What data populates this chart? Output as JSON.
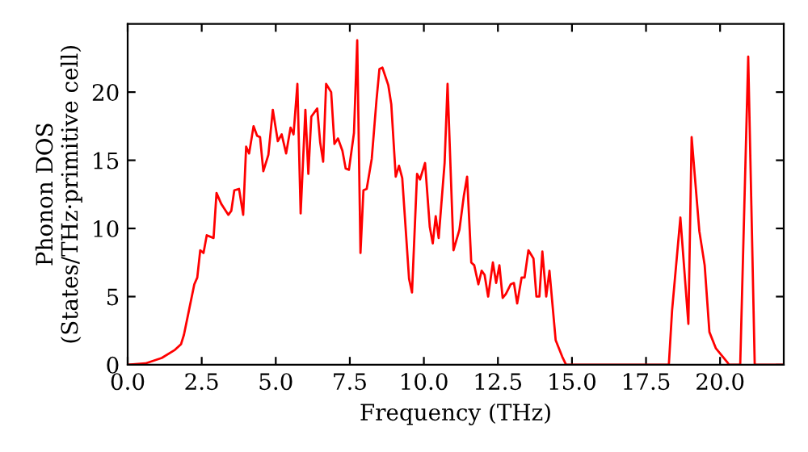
{
  "chart_data": {
    "type": "line",
    "xlabel": "Frequency (THz)",
    "ylabel": "Phonon DOS\n(States/THz·primitive cell)",
    "xlim": [
      0,
      22.15
    ],
    "ylim": [
      0,
      25
    ],
    "xticks": [
      {
        "value": 0,
        "label": "0.0"
      },
      {
        "value": 2.5,
        "label": "2.5"
      },
      {
        "value": 5,
        "label": "5.0"
      },
      {
        "value": 7.5,
        "label": "7.5"
      },
      {
        "value": 10,
        "label": "10.0"
      },
      {
        "value": 12.5,
        "label": "12.5"
      },
      {
        "value": 15,
        "label": "15.0"
      },
      {
        "value": 17.5,
        "label": "17.5"
      },
      {
        "value": 20,
        "label": "20.0"
      }
    ],
    "yticks": [
      0,
      5,
      10,
      15,
      20
    ],
    "grid": false,
    "marker": "none",
    "line_style": "solid",
    "series": [
      {
        "color": "#ff0000",
        "x": [
          0,
          0.6,
          1.15,
          1.6,
          1.8,
          1.9,
          2.07,
          2.25,
          2.35,
          2.45,
          2.56,
          2.67,
          2.9,
          3.0,
          3.16,
          3.4,
          3.5,
          3.6,
          3.76,
          3.9,
          4.0,
          4.1,
          4.25,
          4.37,
          4.47,
          4.58,
          4.75,
          4.9,
          5.07,
          5.2,
          5.35,
          5.5,
          5.6,
          5.73,
          5.84,
          6.0,
          6.1,
          6.2,
          6.4,
          6.5,
          6.6,
          6.7,
          6.87,
          6.98,
          7.1,
          7.25,
          7.36,
          7.47,
          7.64,
          7.75,
          7.86,
          7.96,
          8.07,
          8.24,
          8.4,
          8.5,
          8.6,
          8.8,
          8.9,
          9.05,
          9.16,
          9.27,
          9.5,
          9.6,
          9.77,
          9.87,
          10.04,
          10.2,
          10.3,
          10.4,
          10.5,
          10.7,
          10.8,
          11.0,
          11.2,
          11.35,
          11.46,
          11.6,
          11.7,
          11.84,
          11.95,
          12.05,
          12.17,
          12.33,
          12.44,
          12.55,
          12.66,
          12.77,
          12.93,
          13.04,
          13.15,
          13.3,
          13.4,
          13.53,
          13.7,
          13.8,
          13.9,
          14.0,
          14.13,
          14.24,
          14.45,
          14.67,
          14.8,
          18.27,
          18.38,
          18.66,
          18.93,
          19.04,
          19.3,
          19.48,
          19.64,
          19.86,
          20.24,
          20.3,
          20.68,
          20.95,
          21.17,
          22.15
        ],
        "values": [
          0,
          0.1,
          0.5,
          1.1,
          1.5,
          2.2,
          4,
          5.9,
          6.4,
          8.4,
          8.2,
          9.5,
          9.3,
          12.6,
          11.8,
          11.0,
          11.3,
          12.8,
          12.9,
          11.0,
          16.0,
          15.5,
          17.5,
          16.8,
          16.7,
          14.2,
          15.4,
          18.7,
          16.4,
          16.9,
          15.5,
          17.4,
          16.9,
          20.6,
          11.1,
          18.7,
          14.0,
          18.2,
          18.8,
          16.3,
          14.9,
          20.6,
          20.0,
          16.2,
          16.6,
          15.7,
          14.4,
          14.3,
          17.0,
          23.8,
          8.2,
          12.8,
          12.9,
          15.1,
          19.4,
          21.7,
          21.8,
          20.5,
          19.1,
          13.8,
          14.6,
          13.7,
          6.3,
          5.3,
          14.0,
          13.6,
          14.8,
          10.1,
          8.9,
          10.9,
          9.3,
          14.8,
          20.6,
          8.4,
          9.9,
          12.4,
          13.8,
          7.5,
          7.3,
          5.9,
          6.9,
          6.6,
          5.0,
          7.5,
          6.0,
          7.3,
          4.9,
          5.2,
          5.9,
          6.0,
          4.5,
          6.4,
          6.4,
          8.4,
          7.8,
          5.0,
          5.0,
          8.3,
          5.0,
          6.9,
          1.8,
          0.6,
          0,
          0,
          4.0,
          10.8,
          3.0,
          16.7,
          9.8,
          7.3,
          2.4,
          1.2,
          0.2,
          0,
          0,
          22.6,
          0,
          0
        ]
      }
    ]
  }
}
